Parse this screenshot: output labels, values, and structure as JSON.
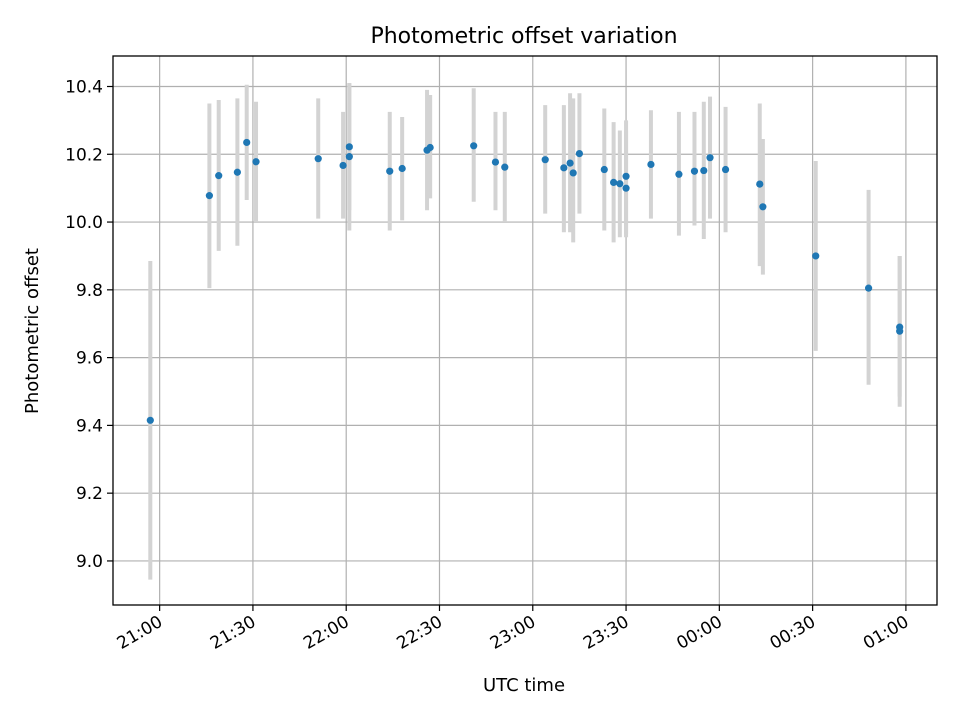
{
  "chart_data": {
    "type": "scatter",
    "title": "Photometric offset variation",
    "xlabel": "UTC time",
    "ylabel": "Photometric offset",
    "x_unit": "UTC",
    "xlim": [
      "20:45",
      "01:10"
    ],
    "ylim": [
      8.87,
      10.49
    ],
    "xticks": [
      "21:00",
      "21:30",
      "22:00",
      "22:30",
      "23:00",
      "23:30",
      "00:00",
      "00:30",
      "01:00"
    ],
    "yticks": [
      "9.0",
      "9.2",
      "9.4",
      "9.6",
      "9.8",
      "10.0",
      "10.2",
      "10.4"
    ],
    "grid": true,
    "legend": "none",
    "point_color": "#1f77b4",
    "errorbar_color": "#d3d3d3",
    "series": [
      {
        "points": [
          {
            "x": "20:57",
            "y": 9.415,
            "ylow": 8.945,
            "yhigh": 9.885
          },
          {
            "x": "21:16",
            "y": 10.078,
            "ylow": 9.805,
            "yhigh": 10.35
          },
          {
            "x": "21:19",
            "y": 10.137,
            "ylow": 9.915,
            "yhigh": 10.36
          },
          {
            "x": "21:25",
            "y": 10.147,
            "ylow": 9.93,
            "yhigh": 10.365
          },
          {
            "x": "21:28",
            "y": 10.235,
            "ylow": 10.065,
            "yhigh": 10.405
          },
          {
            "x": "21:31",
            "y": 10.178,
            "ylow": 10.0,
            "yhigh": 10.355
          },
          {
            "x": "21:51",
            "y": 10.187,
            "ylow": 10.01,
            "yhigh": 10.365
          },
          {
            "x": "21:59",
            "y": 10.167,
            "ylow": 10.01,
            "yhigh": 10.325
          },
          {
            "x": "22:01",
            "y": 10.193,
            "ylow": 9.975,
            "yhigh": 10.41
          },
          {
            "x": "22:01",
            "y": 10.222,
            "ylow": 10.035,
            "yhigh": 10.41
          },
          {
            "x": "22:14",
            "y": 10.15,
            "ylow": 9.975,
            "yhigh": 10.325
          },
          {
            "x": "22:18",
            "y": 10.158,
            "ylow": 10.005,
            "yhigh": 10.31
          },
          {
            "x": "22:26",
            "y": 10.212,
            "ylow": 10.035,
            "yhigh": 10.39
          },
          {
            "x": "22:27",
            "y": 10.22,
            "ylow": 10.07,
            "yhigh": 10.375
          },
          {
            "x": "22:41",
            "y": 10.225,
            "ylow": 10.06,
            "yhigh": 10.395
          },
          {
            "x": "22:48",
            "y": 10.177,
            "ylow": 10.035,
            "yhigh": 10.325
          },
          {
            "x": "22:51",
            "y": 10.162,
            "ylow": 10.0,
            "yhigh": 10.325
          },
          {
            "x": "23:04",
            "y": 10.184,
            "ylow": 10.025,
            "yhigh": 10.345
          },
          {
            "x": "23:10",
            "y": 10.16,
            "ylow": 9.97,
            "yhigh": 10.345
          },
          {
            "x": "23:12",
            "y": 10.174,
            "ylow": 9.97,
            "yhigh": 10.38
          },
          {
            "x": "23:13",
            "y": 10.145,
            "ylow": 9.94,
            "yhigh": 10.365
          },
          {
            "x": "23:15",
            "y": 10.202,
            "ylow": 10.025,
            "yhigh": 10.38
          },
          {
            "x": "23:23",
            "y": 10.155,
            "ylow": 9.975,
            "yhigh": 10.335
          },
          {
            "x": "23:26",
            "y": 10.117,
            "ylow": 9.94,
            "yhigh": 10.295
          },
          {
            "x": "23:28",
            "y": 10.113,
            "ylow": 9.955,
            "yhigh": 10.27
          },
          {
            "x": "23:30",
            "y": 10.1,
            "ylow": 9.955,
            "yhigh": 10.27
          },
          {
            "x": "23:30",
            "y": 10.135,
            "ylow": 9.965,
            "yhigh": 10.3
          },
          {
            "x": "23:38",
            "y": 10.17,
            "ylow": 10.01,
            "yhigh": 10.33
          },
          {
            "x": "23:47",
            "y": 10.141,
            "ylow": 9.96,
            "yhigh": 10.325
          },
          {
            "x": "23:52",
            "y": 10.15,
            "ylow": 9.99,
            "yhigh": 10.325
          },
          {
            "x": "23:55",
            "y": 10.152,
            "ylow": 9.95,
            "yhigh": 10.355
          },
          {
            "x": "23:57",
            "y": 10.19,
            "ylow": 10.01,
            "yhigh": 10.37
          },
          {
            "x": "00:02",
            "y": 10.155,
            "ylow": 9.97,
            "yhigh": 10.34
          },
          {
            "x": "00:13",
            "y": 10.112,
            "ylow": 9.87,
            "yhigh": 10.35
          },
          {
            "x": "00:14",
            "y": 10.045,
            "ylow": 9.845,
            "yhigh": 10.245
          },
          {
            "x": "00:31",
            "y": 9.9,
            "ylow": 9.62,
            "yhigh": 10.18
          },
          {
            "x": "00:48",
            "y": 9.805,
            "ylow": 9.52,
            "yhigh": 10.095
          },
          {
            "x": "00:58",
            "y": 9.678,
            "ylow": 9.455,
            "yhigh": 9.9
          },
          {
            "x": "00:58",
            "y": 9.69,
            "ylow": 9.485,
            "yhigh": 9.9
          }
        ]
      }
    ]
  }
}
